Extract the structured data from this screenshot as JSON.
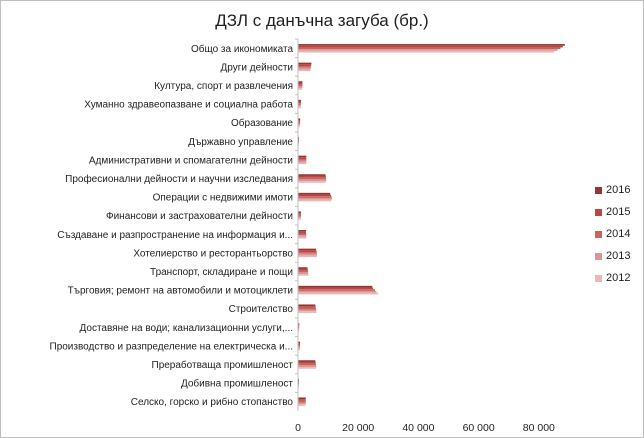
{
  "chart_data": {
    "type": "bar",
    "orientation": "horizontal",
    "title": "ДЗЛ с данъчна загуба (бр.)",
    "categories": [
      "Общо за икономиката",
      "Други дейности",
      "Култура, спорт и развлечения",
      "Хуманно здравеопазване и социална работа",
      "Образование",
      "Държавно управление",
      "Административни и  спомагателни дейности",
      "Професионални дейности и научни изследвания",
      "Операции с недвижими имоти",
      "Финансови и застрахователни дейности",
      "Създаване и разпространение на информация и...",
      "Хотелиерство и ресторантьорство",
      "Транспорт, складиране и пощи",
      "Търговия; ремонт на автомобили и мотоциклети",
      "Строителство",
      "Доставяне на води; канализационни услуги,...",
      "Производство и разпределение на електрическа и...",
      "Преработваща промишленост",
      "Добивна промишленост",
      "Селско, горско и рибно стопанство"
    ],
    "series": [
      {
        "name": "2016",
        "color": "#943634",
        "values": [
          88500,
          4300,
          1300,
          800,
          550,
          80,
          2600,
          9000,
          10500,
          800,
          2500,
          5800,
          3000,
          24500,
          5600,
          250,
          500,
          5600,
          160,
          2400
        ]
      },
      {
        "name": "2015",
        "color": "#b94743",
        "values": [
          87800,
          4200,
          1300,
          800,
          550,
          70,
          2600,
          9100,
          10800,
          800,
          2500,
          6000,
          3100,
          24800,
          5700,
          250,
          500,
          5700,
          160,
          2400
        ]
      },
      {
        "name": "2014",
        "color": "#c9635f",
        "values": [
          87000,
          4100,
          1300,
          780,
          540,
          70,
          2600,
          9200,
          11000,
          800,
          2600,
          6100,
          3200,
          25400,
          5800,
          240,
          500,
          5800,
          160,
          2400
        ]
      },
      {
        "name": "2013",
        "color": "#d99694",
        "values": [
          86000,
          4000,
          1300,
          760,
          520,
          70,
          2600,
          9200,
          11100,
          800,
          2600,
          6100,
          3200,
          25900,
          5900,
          240,
          500,
          5900,
          160,
          2400
        ]
      },
      {
        "name": "2012",
        "color": "#e6b9b8",
        "values": [
          85000,
          4000,
          1200,
          740,
          500,
          60,
          2600,
          9100,
          10900,
          750,
          2600,
          6100,
          3300,
          26500,
          6000,
          230,
          500,
          5900,
          160,
          2300
        ]
      }
    ],
    "xlim": [
      0,
      96000
    ],
    "xticks": [
      0,
      20000,
      40000,
      60000,
      80000
    ],
    "xtick_labels": [
      "0",
      "20 000",
      "40 000",
      "60 000",
      "80 000"
    ],
    "gridlines": false,
    "legend_position": "right"
  }
}
